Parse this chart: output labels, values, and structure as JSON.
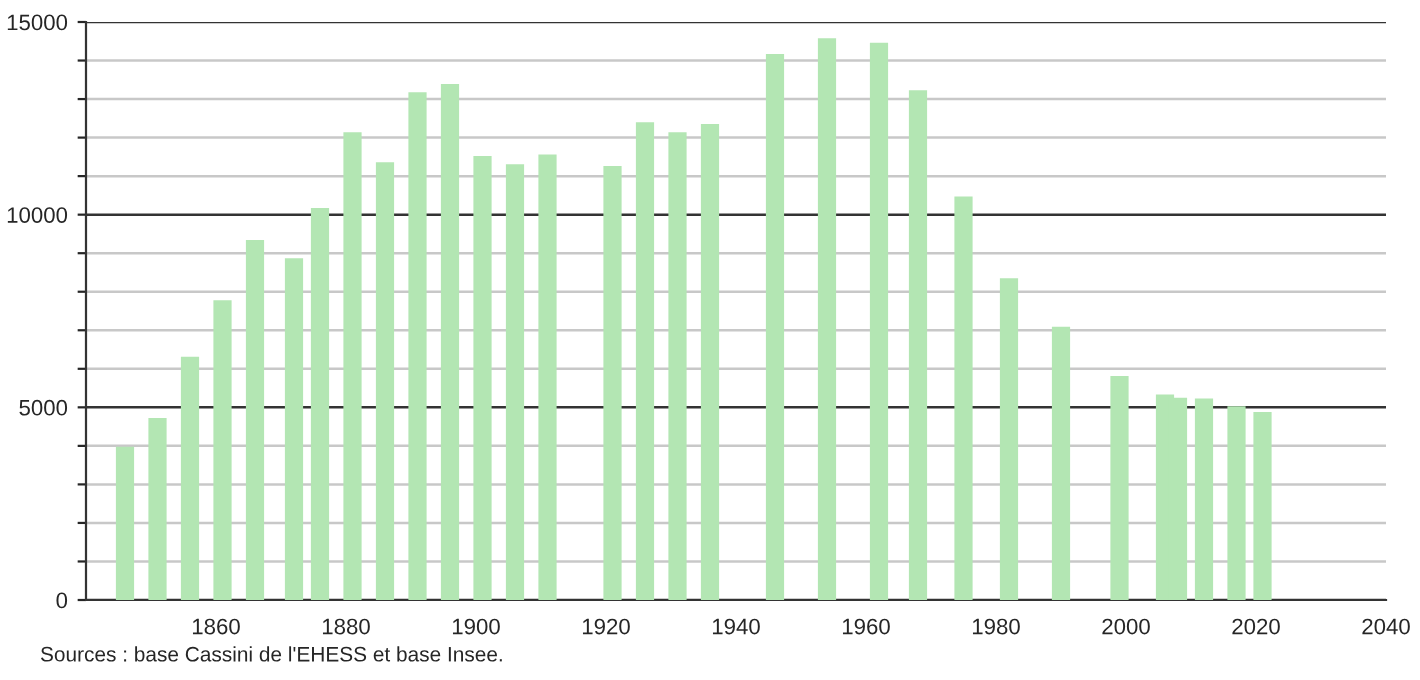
{
  "chart_data": {
    "type": "bar",
    "x": [
      1846,
      1851,
      1856,
      1861,
      1866,
      1872,
      1876,
      1881,
      1886,
      1891,
      1896,
      1901,
      1906,
      1911,
      1921,
      1926,
      1931,
      1936,
      1946,
      1954,
      1962,
      1968,
      1975,
      1982,
      1990,
      1999,
      2006,
      2008,
      2012,
      2017,
      2021
    ],
    "values": [
      3980,
      4720,
      6310,
      7780,
      9340,
      8870,
      10170,
      12140,
      11360,
      13180,
      13390,
      11520,
      11310,
      11560,
      11260,
      12400,
      12140,
      12350,
      14170,
      14580,
      14460,
      13230,
      10470,
      8350,
      7090,
      5810,
      5330,
      5250,
      5230,
      5030,
      4880
    ],
    "color": "#b3e6b3",
    "xlim": [
      1840,
      2040
    ],
    "xticks": [
      1860,
      1880,
      1900,
      1920,
      1940,
      1960,
      1980,
      2000,
      2020,
      2040
    ],
    "ylim": [
      0,
      15000
    ],
    "yticks": [
      0,
      {
        "value": 1000,
        "label": null
      },
      {
        "value": 2000,
        "label": null
      },
      {
        "value": 3000,
        "label": null
      },
      {
        "value": 4000,
        "label": null
      },
      5000,
      {
        "value": 6000,
        "label": null
      },
      {
        "value": 7000,
        "label": null
      },
      {
        "value": 8000,
        "label": null
      },
      {
        "value": 9000,
        "label": null
      },
      10000,
      {
        "value": 11000,
        "label": null
      },
      {
        "value": 12000,
        "label": null
      },
      {
        "value": 13000,
        "label": null
      },
      {
        "value": 14000,
        "label": null
      },
      15000
    ],
    "grid": "y",
    "legend": false,
    "annotations": [
      "Sources : base Cassini de l'EHESS et base Insee."
    ]
  }
}
